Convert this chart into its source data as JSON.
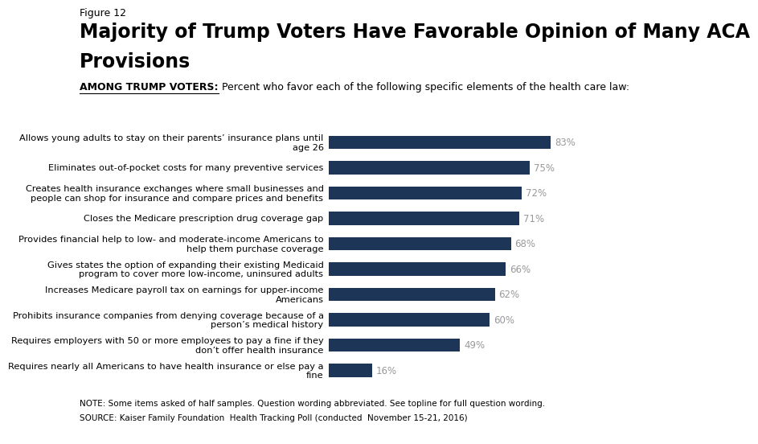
{
  "figure_label": "Figure 12",
  "title_line1": "Majority of Trump Voters Have Favorable Opinion of Many ACA",
  "title_line2": "Provisions",
  "subtitle_bold": "AMONG TRUMP VOTERS:",
  "subtitle_regular": " Percent who favor each of the following specific elements of the health care law:",
  "categories": [
    "Allows young adults to stay on their parents’ insurance plans until\nage 26",
    "Eliminates out-of-pocket costs for many preventive services",
    "Creates health insurance exchanges where small businesses and\npeople can shop for insurance and compare prices and benefits",
    "Closes the Medicare prescription drug coverage gap",
    "Provides financial help to low- and moderate-income Americans to\nhelp them purchase coverage",
    "Gives states the option of expanding their existing Medicaid\nprogram to cover more low-income, uninsured adults",
    "Increases Medicare payroll tax on earnings for upper-income\nAmericans",
    "Prohibits insurance companies from denying coverage because of a\nperson’s medical history",
    "Requires employers with 50 or more employees to pay a fine if they\ndon’t offer health insurance",
    "Requires nearly all Americans to have health insurance or else pay a\nfine"
  ],
  "values": [
    83,
    75,
    72,
    71,
    68,
    66,
    62,
    60,
    49,
    16
  ],
  "bar_color": "#1d3557",
  "value_color": "#999999",
  "background_color": "#ffffff",
  "note_line1": "NOTE: Some items asked of half samples. Question wording abbreviated. See topline for full question wording.",
  "note_line2": "SOURCE: Kaiser Family Foundation  Health Tracking Poll (conducted  November 15-21, 2016)",
  "xlim": [
    0,
    100
  ],
  "bar_height": 0.52,
  "figure_label_fontsize": 9,
  "title_fontsize": 17,
  "subtitle_fontsize": 9,
  "category_fontsize": 8.2,
  "value_fontsize": 8.5,
  "note_fontsize": 7.5,
  "logo_color": "#1d3557",
  "logo_text_color": "#ffffff"
}
